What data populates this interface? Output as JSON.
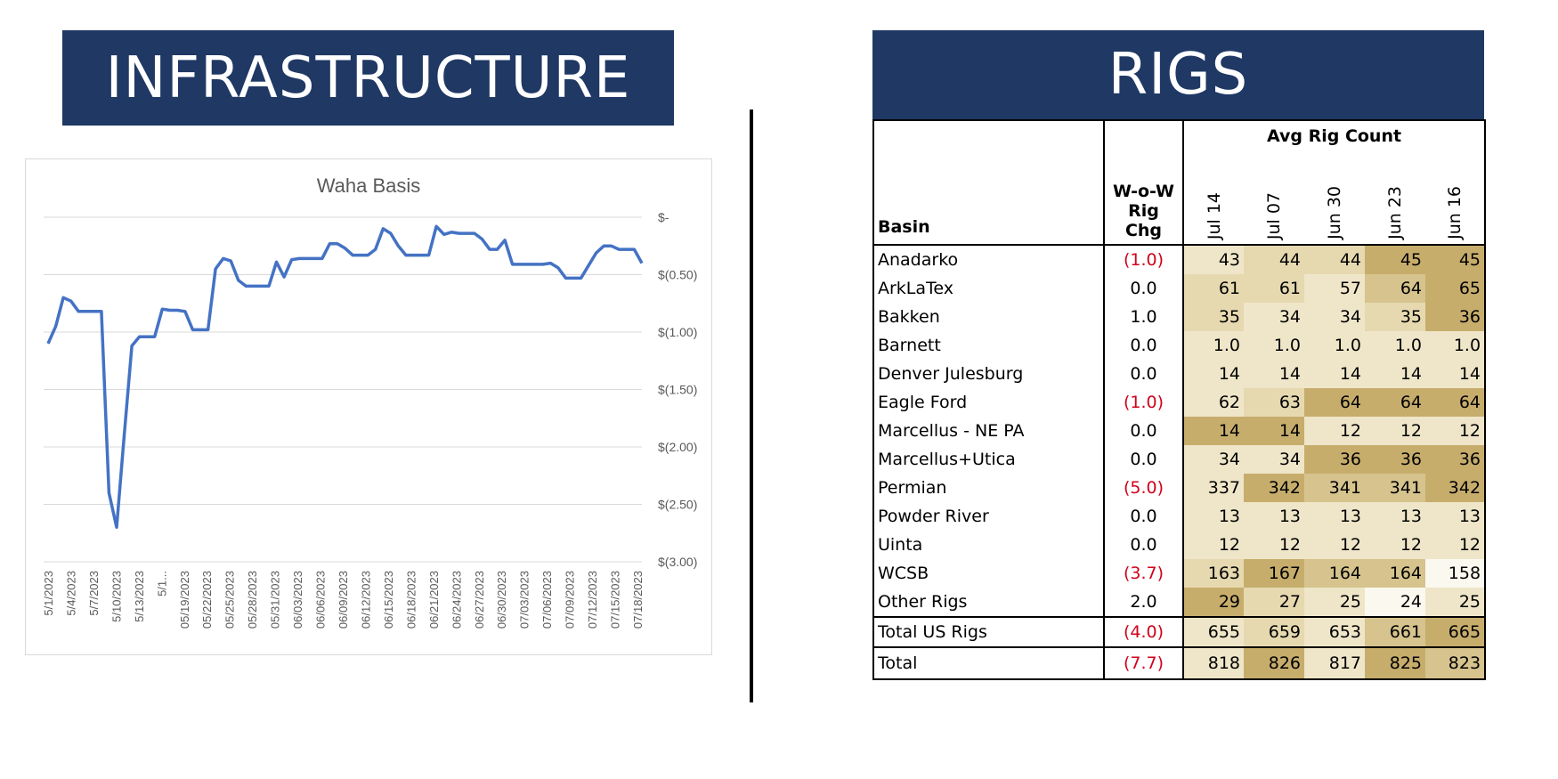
{
  "left_banner": "INFRASTRUCTURE",
  "right_banner": "RIGS",
  "chart_data": {
    "type": "line",
    "title": "Waha Basis",
    "ylim": [
      -3.0,
      0
    ],
    "yticks": [
      0,
      -0.5,
      -1.0,
      -1.5,
      -2.0,
      -2.5,
      -3.0
    ],
    "ytick_labels": [
      "$-",
      "$(0.50)",
      "$(1.00)",
      "$(1.50)",
      "$(2.00)",
      "$(2.50)",
      "$(3.00)"
    ],
    "xtick_labels": [
      "5/1/2023",
      "5/4/2023",
      "5/7/2023",
      "5/10/2023",
      "5/13/2023",
      "5/1...",
      "05/19/2023",
      "05/22/2023",
      "05/25/2023",
      "05/28/2023",
      "05/31/2023",
      "06/03/2023",
      "06/06/2023",
      "06/09/2023",
      "06/12/2023",
      "06/15/2023",
      "06/18/2023",
      "06/21/2023",
      "06/24/2023",
      "06/27/2023",
      "06/30/2023",
      "07/03/2023",
      "07/06/2023",
      "07/09/2023",
      "07/12/2023",
      "07/15/2023",
      "07/18/2023"
    ],
    "series": [
      {
        "color": "#4472c4",
        "values": [
          -1.1,
          -0.95,
          -0.7,
          -0.73,
          -0.82,
          -0.82,
          -0.82,
          -0.82,
          -2.4,
          -2.7,
          -1.9,
          -1.12,
          -1.04,
          -1.04,
          -1.04,
          -0.8,
          -0.81,
          -0.81,
          -0.82,
          -0.98,
          -0.98,
          -0.98,
          -0.45,
          -0.36,
          -0.38,
          -0.55,
          -0.6,
          -0.6,
          -0.6,
          -0.6,
          -0.39,
          -0.52,
          -0.37,
          -0.36,
          -0.36,
          -0.36,
          -0.36,
          -0.23,
          -0.23,
          -0.27,
          -0.33,
          -0.33,
          -0.33,
          -0.28,
          -0.1,
          -0.14,
          -0.25,
          -0.33,
          -0.33,
          -0.33,
          -0.33,
          -0.08,
          -0.15,
          -0.13,
          -0.14,
          -0.14,
          -0.14,
          -0.19,
          -0.28,
          -0.28,
          -0.2,
          -0.41,
          -0.41,
          -0.41,
          -0.41,
          -0.41,
          -0.4,
          -0.44,
          -0.53,
          -0.53,
          -0.53,
          -0.42,
          -0.31,
          -0.25,
          -0.25,
          -0.28,
          -0.28,
          -0.28,
          -0.4
        ]
      }
    ]
  },
  "table": {
    "avg_header": "Avg Rig Count",
    "basin_header": "Basin",
    "wow_header_1": "W-o-W",
    "wow_header_2": "Rig Chg",
    "weeks": [
      "Jul 14",
      "Jul 07",
      "Jun 30",
      "Jun 23",
      "Jun 16"
    ],
    "rows": [
      {
        "basin": "Anadarko",
        "chg": "(1.0)",
        "neg": true,
        "vals": [
          "43",
          "44",
          "44",
          "45",
          "45"
        ],
        "shade": [
          1,
          2,
          2,
          4,
          4
        ]
      },
      {
        "basin": "ArkLaTex",
        "chg": "0.0",
        "neg": false,
        "vals": [
          "61",
          "61",
          "57",
          "64",
          "65"
        ],
        "shade": [
          2,
          2,
          1,
          3,
          4
        ]
      },
      {
        "basin": "Bakken",
        "chg": "1.0",
        "neg": false,
        "vals": [
          "35",
          "34",
          "34",
          "35",
          "36"
        ],
        "shade": [
          2,
          1,
          1,
          2,
          4
        ]
      },
      {
        "basin": "Barnett",
        "chg": "0.0",
        "neg": false,
        "vals": [
          "1.0",
          "1.0",
          "1.0",
          "1.0",
          "1.0"
        ],
        "shade": [
          1,
          1,
          1,
          1,
          1
        ]
      },
      {
        "basin": "Denver Julesburg",
        "chg": "0.0",
        "neg": false,
        "vals": [
          "14",
          "14",
          "14",
          "14",
          "14"
        ],
        "shade": [
          1,
          1,
          1,
          1,
          1
        ]
      },
      {
        "basin": "Eagle Ford",
        "chg": "(1.0)",
        "neg": true,
        "vals": [
          "62",
          "63",
          "64",
          "64",
          "64"
        ],
        "shade": [
          1,
          2,
          4,
          4,
          4
        ]
      },
      {
        "basin": "Marcellus - NE PA",
        "chg": "0.0",
        "neg": false,
        "vals": [
          "14",
          "14",
          "12",
          "12",
          "12"
        ],
        "shade": [
          4,
          4,
          1,
          1,
          1
        ]
      },
      {
        "basin": "Marcellus+Utica",
        "chg": "0.0",
        "neg": false,
        "vals": [
          "34",
          "34",
          "36",
          "36",
          "36"
        ],
        "shade": [
          1,
          1,
          4,
          4,
          4
        ]
      },
      {
        "basin": "Permian",
        "chg": "(5.0)",
        "neg": true,
        "vals": [
          "337",
          "342",
          "341",
          "341",
          "342"
        ],
        "shade": [
          1,
          4,
          3,
          3,
          4
        ]
      },
      {
        "basin": "Powder River",
        "chg": "0.0",
        "neg": false,
        "vals": [
          "13",
          "13",
          "13",
          "13",
          "13"
        ],
        "shade": [
          1,
          1,
          1,
          1,
          1
        ]
      },
      {
        "basin": "Uinta",
        "chg": "0.0",
        "neg": false,
        "vals": [
          "12",
          "12",
          "12",
          "12",
          "12"
        ],
        "shade": [
          1,
          1,
          1,
          1,
          1
        ]
      },
      {
        "basin": "WCSB",
        "chg": "(3.7)",
        "neg": true,
        "vals": [
          "163",
          "167",
          "164",
          "164",
          "158"
        ],
        "shade": [
          2,
          4,
          3,
          3,
          0
        ]
      },
      {
        "basin": "Other Rigs",
        "chg": "2.0",
        "neg": false,
        "vals": [
          "29",
          "27",
          "25",
          "24",
          "25"
        ],
        "shade": [
          4,
          2,
          1,
          0,
          1
        ]
      }
    ],
    "total_us": {
      "basin": "Total US Rigs",
      "chg": "(4.0)",
      "neg": true,
      "vals": [
        "655",
        "659",
        "653",
        "661",
        "665"
      ],
      "shade": [
        1,
        2,
        1,
        3,
        4
      ]
    },
    "total": {
      "basin": "Total",
      "chg": "(7.7)",
      "neg": true,
      "vals": [
        "818",
        "826",
        "817",
        "825",
        "823"
      ],
      "shade": [
        1,
        4,
        1,
        4,
        3
      ]
    },
    "shade_colors": [
      "#fbf8ef",
      "#efe6c9",
      "#e6d9b0",
      "#d6c38d",
      "#c7ad6c"
    ]
  }
}
